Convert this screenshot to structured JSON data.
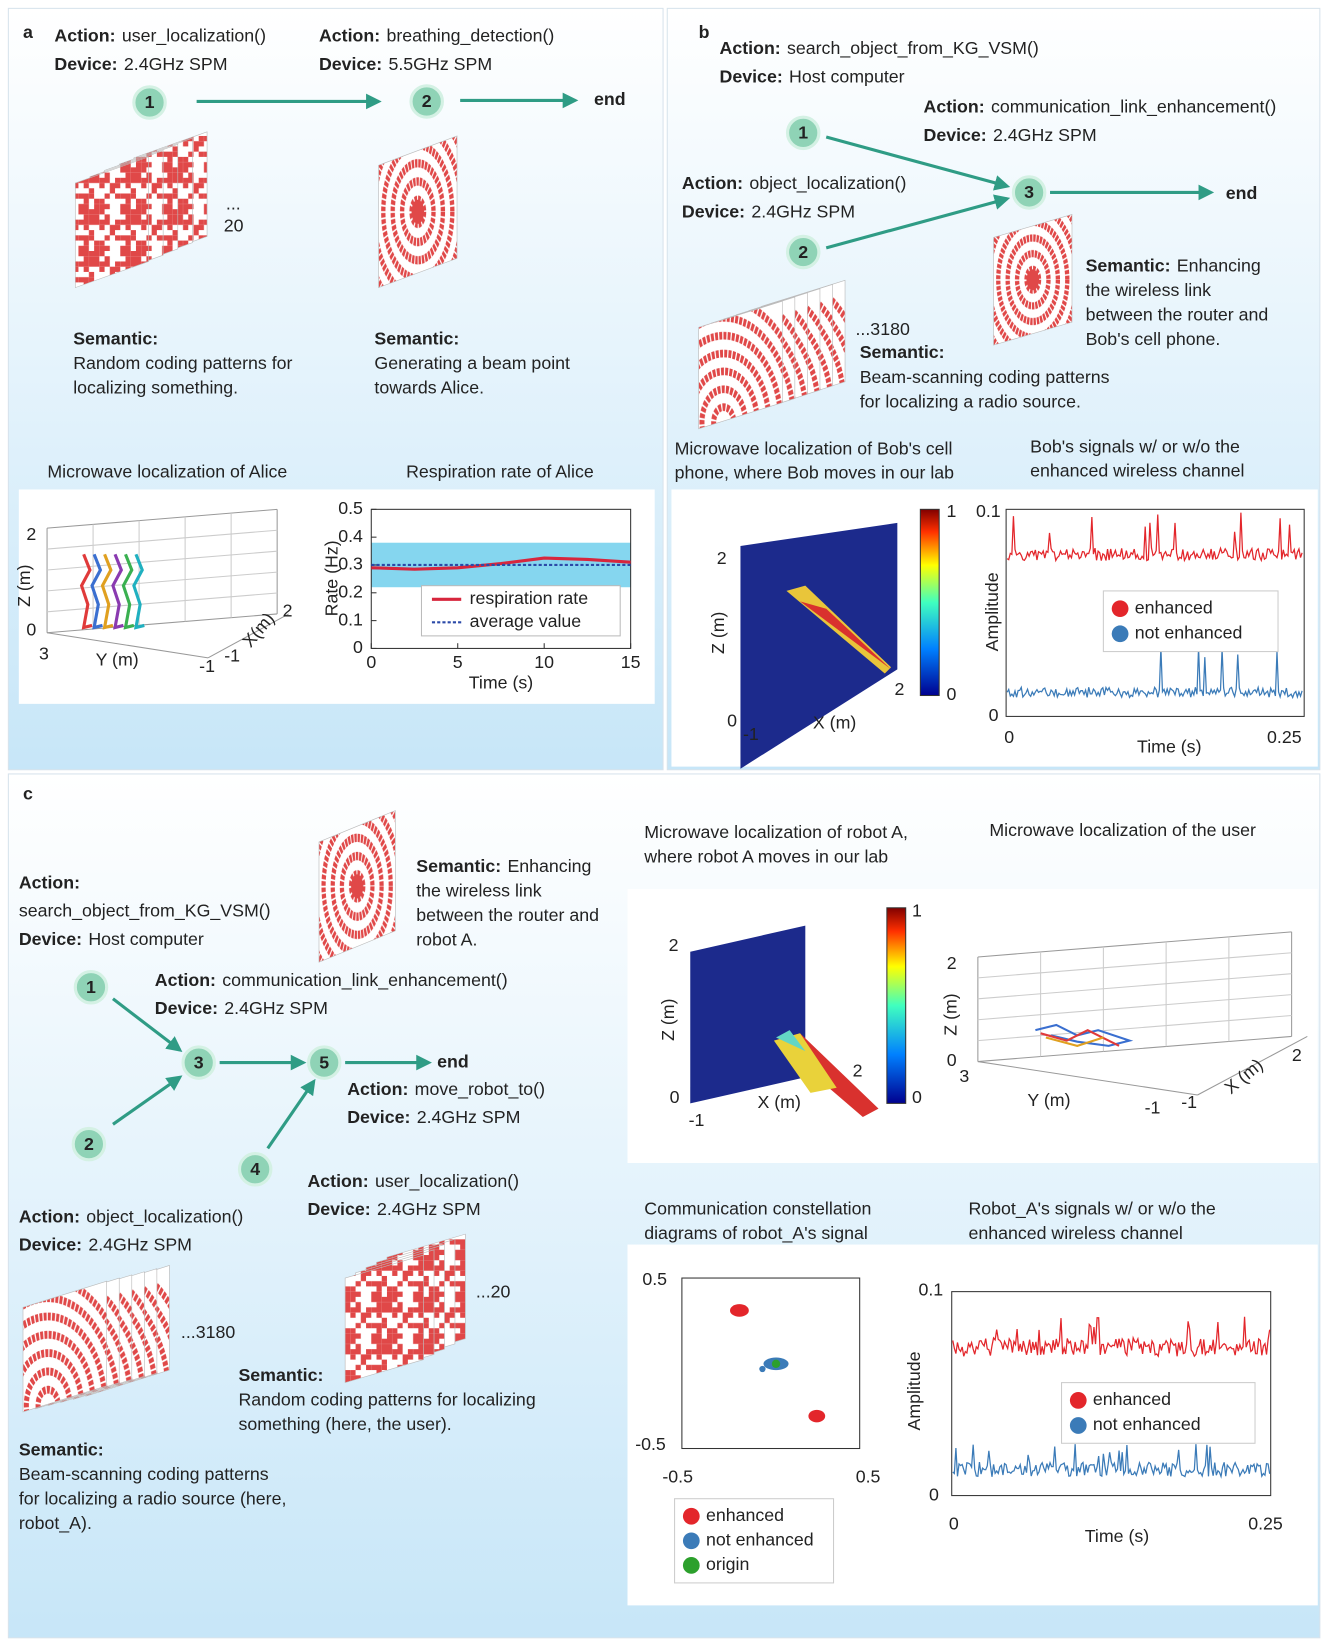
{
  "panel_a": {
    "label": "a",
    "steps": [
      {
        "action_key": "Action:",
        "action": "user_localization()",
        "device_key": "Device:",
        "device": "2.4GHz SPM"
      },
      {
        "action_key": "Action:",
        "action": "breathing_detection()",
        "device_key": "Device:",
        "device": "5.5GHz SPM"
      }
    ],
    "nodes": [
      "1",
      "2",
      "end"
    ],
    "pattern_count": [
      "...",
      "20"
    ],
    "semantics": [
      {
        "key": "Semantic:",
        "lines": [
          "Random coding patterns for",
          "localizing something."
        ]
      },
      {
        "key": "Semantic:",
        "lines": [
          "Generating a beam point",
          "towards Alice."
        ]
      }
    ],
    "localization_plot": {
      "title": "Microwave localization of Alice",
      "z_label": "Z (m)",
      "y_label": "Y (m)",
      "x_label": "X(m)",
      "tick_labels": [
        "2",
        "0",
        "3",
        "-1",
        "-1",
        "2"
      ]
    },
    "respiration_plot": {
      "title": "Respiration rate of Alice",
      "y_label": "Rate (Hz)",
      "x_label": "Time (s)",
      "xlim": [
        0,
        15
      ],
      "ylim": [
        0,
        0.5
      ],
      "xticks": [
        0,
        5,
        10,
        15
      ],
      "yticks": [
        0,
        0.1,
        0.2,
        0.3,
        0.4,
        0.5
      ],
      "band": [
        0.22,
        0.38
      ],
      "band_color": "#5cc8ea",
      "legend": "lower right",
      "series": [
        {
          "name": "respiration rate",
          "color": "#d7263d",
          "x": [
            0,
            2.5,
            5,
            7.5,
            10,
            12.5,
            15
          ],
          "values": [
            0.29,
            0.285,
            0.29,
            0.305,
            0.325,
            0.32,
            0.31
          ]
        },
        {
          "name": "average value",
          "color": "#2b4aa8",
          "x": [
            0,
            15
          ],
          "values": [
            0.3,
            0.3
          ]
        }
      ]
    }
  },
  "panel_b": {
    "label": "b",
    "steps": [
      {
        "action_key": "Action:",
        "action": "search_object_from_KG_VSM()",
        "device_key": "Device:",
        "device": "Host computer"
      },
      {
        "action_key": "Action:",
        "action": "communication_link_enhancement()",
        "device_key": "Device:",
        "device": "2.4GHz SPM"
      },
      {
        "action_key": "Action:",
        "action": "object_localization()",
        "device_key": "Device:",
        "device": "2.4GHz SPM"
      }
    ],
    "nodes": [
      "1",
      "2",
      "3",
      "end"
    ],
    "pattern_count": "...3180",
    "semantics": [
      {
        "key": "Semantic:",
        "lines": [
          "Beam-scanning coding patterns",
          "for localizing a radio source."
        ]
      },
      {
        "key": "Semantic:",
        "first": "Enhancing",
        "lines": [
          "the wireless link",
          "between the router and",
          "Bob's cell phone."
        ]
      }
    ],
    "localization_plot": {
      "title_lines": [
        "Microwave localization of Bob's cell",
        "phone, where Bob moves in our lab"
      ],
      "z_label": "Z (m)",
      "x_label": "X (m)",
      "tick_labels": [
        "2",
        "0",
        "-1",
        "2"
      ],
      "colorbar_labels": [
        "1",
        "0"
      ]
    },
    "signal_plot": {
      "title_lines": [
        "Bob's signals w/ or w/o the",
        "enhanced wireless channel"
      ],
      "y_label": "Amplitude",
      "x_label": "Time (s)",
      "tick_labels": [
        "0.1",
        "0",
        "0",
        "0.25"
      ],
      "legend": [
        {
          "name": "enhanced",
          "color": "#e3262b"
        },
        {
          "name": "not enhanced",
          "color": "#3b7bb8"
        }
      ]
    }
  },
  "panel_c": {
    "label": "c",
    "steps": [
      {
        "action_key": "Action:",
        "action": "search_object_from_KG_VSM()",
        "device_key": "Device:",
        "device": "Host computer"
      },
      {
        "action_key": "Action:",
        "action": "communication_link_enhancement()",
        "device_key": "Device:",
        "device": "2.4GHz SPM"
      },
      {
        "action_key": "Action:",
        "action": "move_robot_to()",
        "device_key": "Device:",
        "device": "2.4GHz SPM"
      },
      {
        "action_key": "Action:",
        "action": "user_localization()",
        "device_key": "Device:",
        "device": "2.4GHz SPM"
      },
      {
        "action_key": "Action:",
        "action": "object_localization()",
        "device_key": "Device:",
        "device": "2.4GHz SPM"
      }
    ],
    "nodes": [
      "1",
      "2",
      "3",
      "4",
      "5",
      "end"
    ],
    "pattern_counts": [
      "...3180",
      "...20"
    ],
    "semantics": [
      {
        "key": "Semantic:",
        "first": "Enhancing",
        "lines": [
          "the wireless link",
          "between the router and",
          "robot A."
        ]
      },
      {
        "key": "Semantic:",
        "lines": [
          "Random coding patterns for localizing",
          "something  (here, the user)."
        ]
      },
      {
        "key": "Semantic:",
        "lines": [
          "Beam-scanning coding patterns",
          "for localizing a radio source (here,",
          "robot_A)."
        ]
      }
    ],
    "robot_localization_plot": {
      "title_lines": [
        "Microwave localization of robot A,",
        "where robot A moves in our lab"
      ],
      "z_label": "Z (m)",
      "x_label": "X (m)",
      "tick_labels": [
        "2",
        "0",
        "-1",
        "2"
      ],
      "colorbar_labels": [
        "1",
        "0"
      ]
    },
    "user_localization_plot": {
      "title": "Microwave localization of the user",
      "z_label": "Z (m)",
      "y_label": "Y (m)",
      "x_label": "X (m)",
      "tick_labels": [
        "2",
        "0",
        "3",
        "-1",
        "-1",
        "2"
      ]
    },
    "constellation_plot": {
      "title_lines": [
        "Communication  constellation",
        "diagrams of robot_A's signal"
      ],
      "tick_labels": [
        "0.5",
        "-0.5",
        "-0.5",
        "0.5"
      ],
      "legend": [
        {
          "name": "enhanced",
          "color": "#e3262b"
        },
        {
          "name": "not enhanced",
          "color": "#3b7bb8"
        },
        {
          "name": "origin",
          "color": "#2ca02c"
        }
      ]
    },
    "signal_plot": {
      "title_lines": [
        "Robot_A's signals w/ or w/o the",
        "enhanced wireless channel"
      ],
      "y_label": "Amplitude",
      "x_label": "Time (s)",
      "tick_labels": [
        "0.1",
        "0",
        "0",
        "0.25"
      ],
      "legend": [
        {
          "name": "enhanced",
          "color": "#e3262b"
        },
        {
          "name": "not enhanced",
          "color": "#3b7bb8"
        }
      ]
    }
  }
}
